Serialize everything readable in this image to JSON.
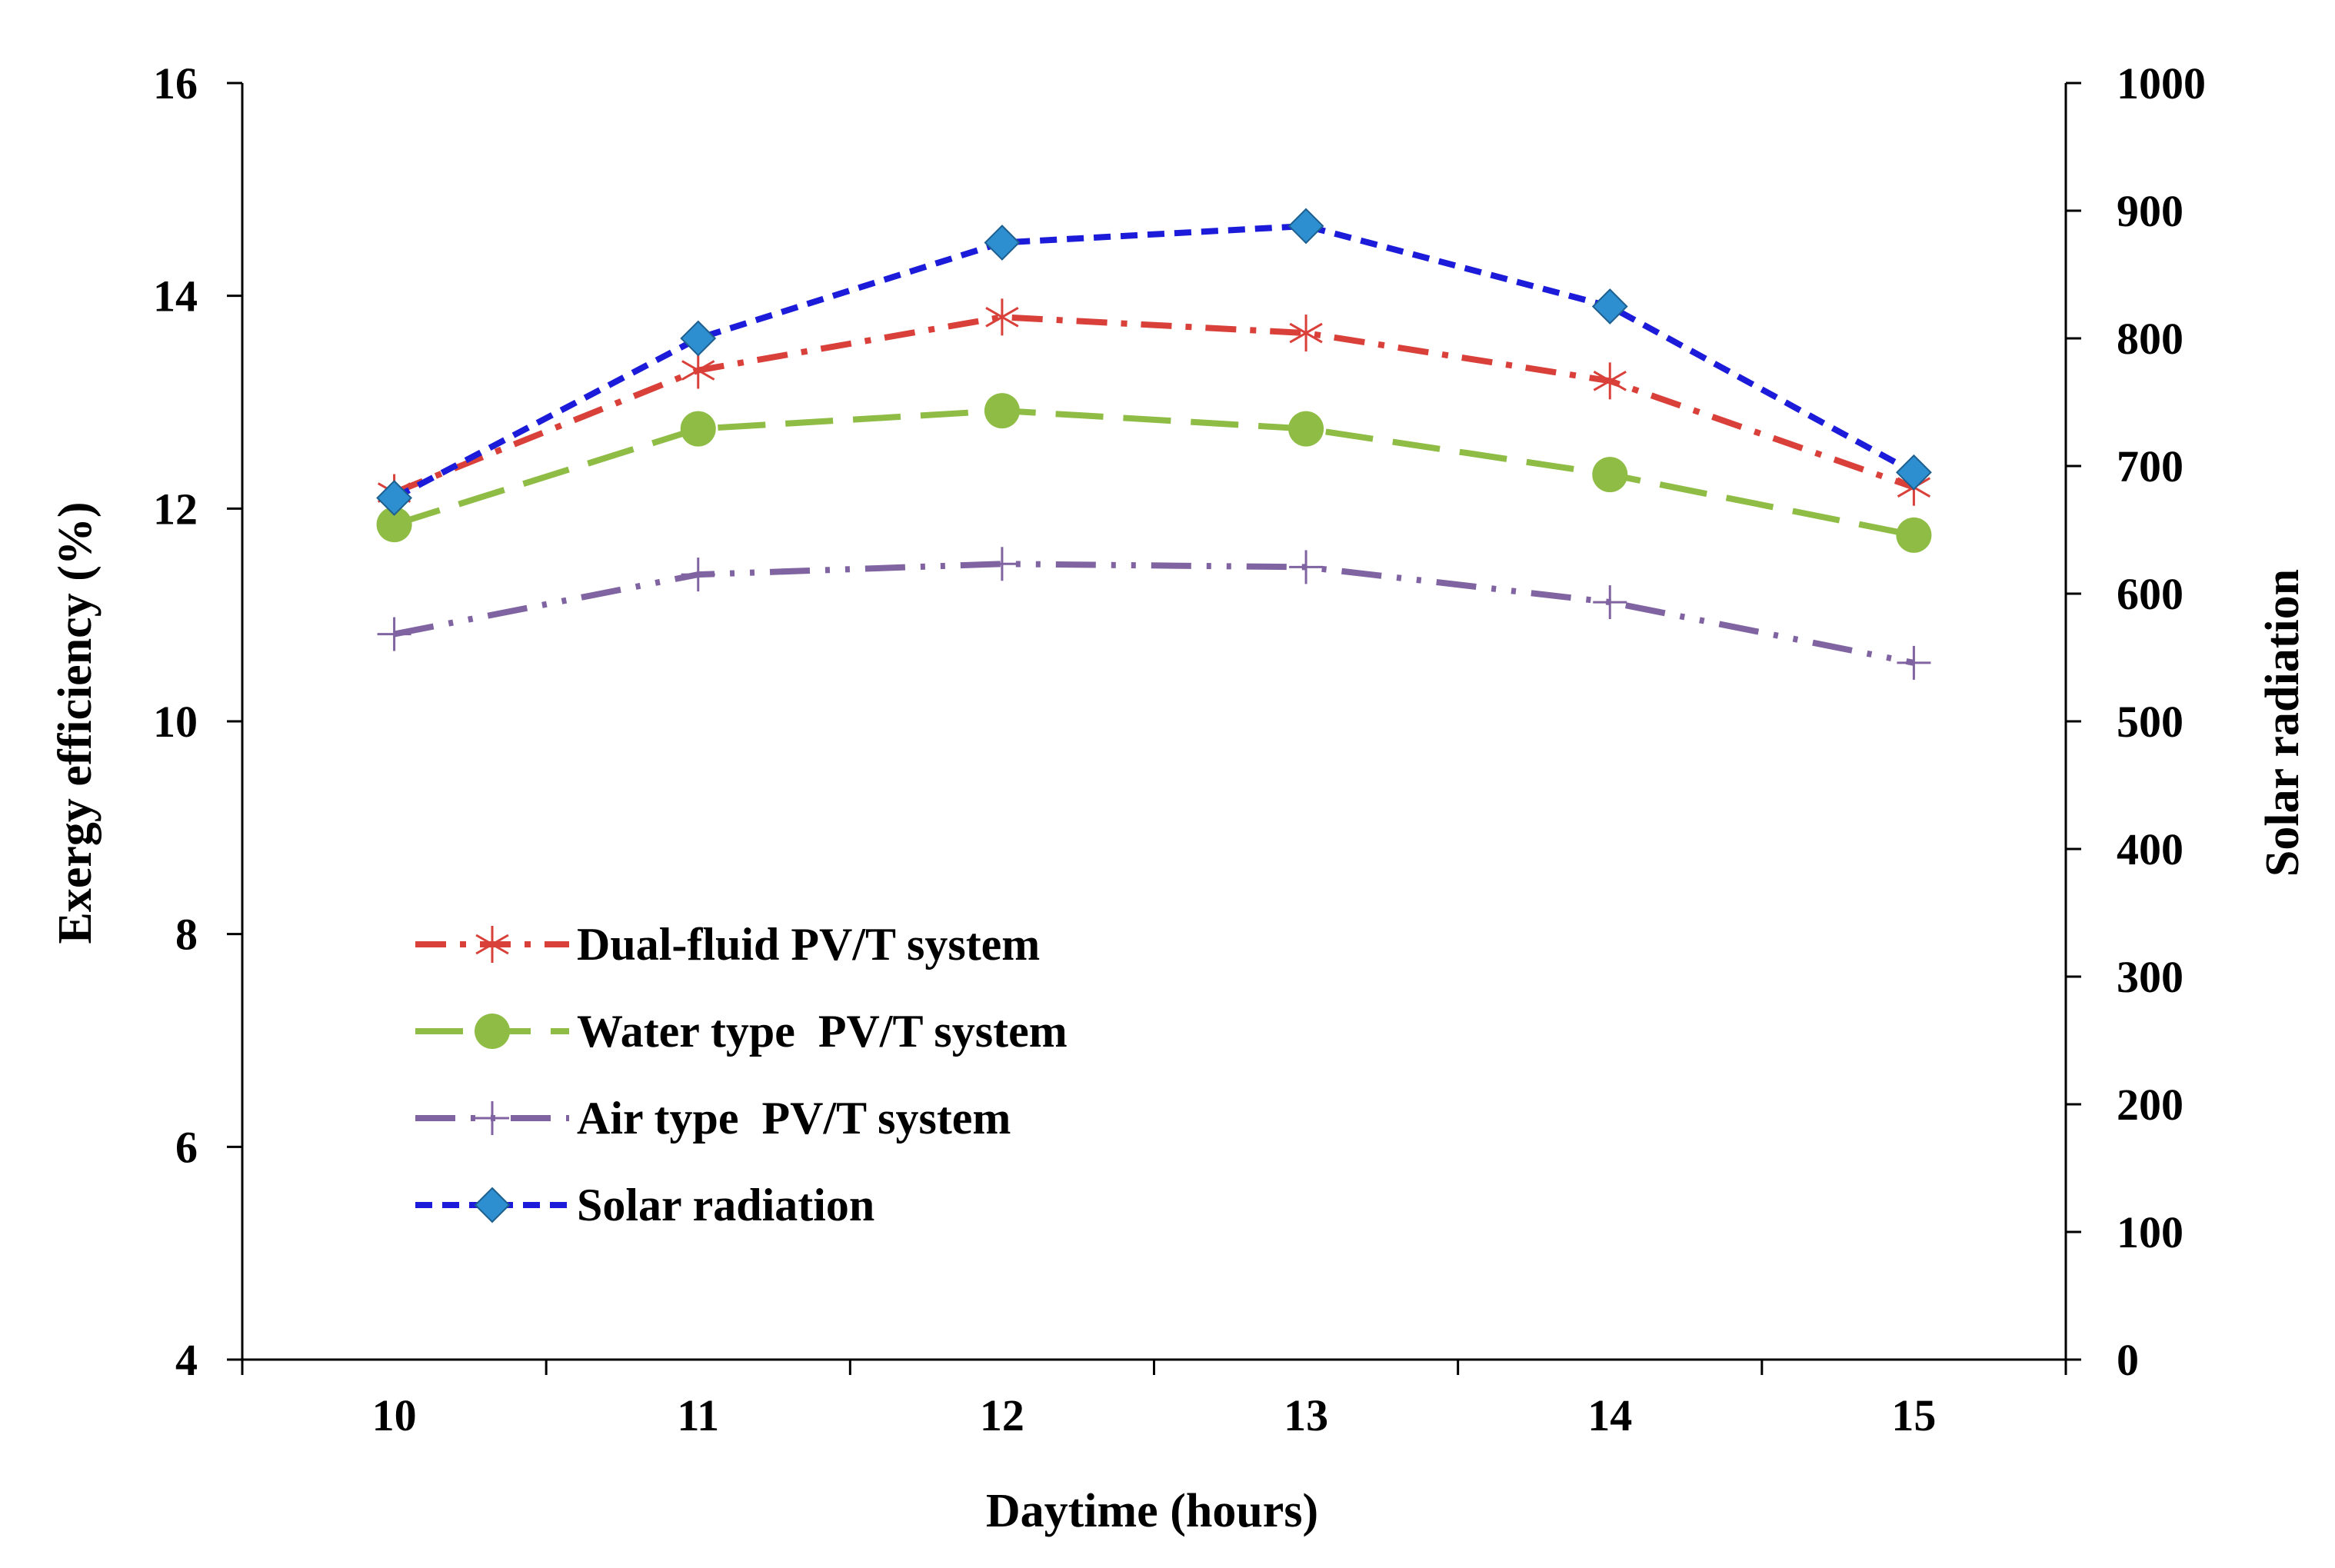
{
  "chart_data": {
    "type": "line",
    "title": "",
    "xlabel": "Daytime (hours)",
    "ylabel": "Exergy  efficiency (%)",
    "y2label": "Solar radiation",
    "categories": [
      10,
      11,
      12,
      13,
      14,
      15
    ],
    "x_tick_labels": [
      "10",
      "11",
      "12",
      "13",
      "14",
      "15"
    ],
    "xlim": [
      9.5,
      15.5
    ],
    "ylim": [
      4,
      16
    ],
    "y_ticks": [
      4,
      6,
      8,
      10,
      12,
      14,
      16
    ],
    "y_tick_labels": [
      "4",
      "6",
      "8",
      "10",
      "12",
      "14",
      "16"
    ],
    "y2lim": [
      0,
      1000
    ],
    "y2_ticks": [
      0,
      100,
      200,
      300,
      400,
      500,
      600,
      700,
      800,
      900,
      1000
    ],
    "y2_tick_labels": [
      "0",
      "100",
      "200",
      "300",
      "400",
      "500",
      "600",
      "700",
      "800",
      "900",
      "1000"
    ],
    "grid": false,
    "legend_position": "bottom-left",
    "series": [
      {
        "key": "dual",
        "name": "Dual-fluid PV/T system",
        "axis": "left",
        "values": [
          12.15,
          13.3,
          13.8,
          13.65,
          13.2,
          12.2
        ],
        "color": "#d9403a",
        "line_style": "dash-dot",
        "marker": "asterisk"
      },
      {
        "key": "water",
        "name": "Water type  PV/T system",
        "axis": "left",
        "values": [
          11.85,
          12.75,
          12.92,
          12.75,
          12.32,
          11.75
        ],
        "color": "#8fbc45",
        "line_style": "long-dash",
        "marker": "circle"
      },
      {
        "key": "air",
        "name": "Air type  PV/T system",
        "axis": "left",
        "values": [
          10.82,
          11.38,
          11.48,
          11.45,
          11.12,
          10.55
        ],
        "color": "#8064a2",
        "line_style": "long-dash-dot-dot",
        "marker": "plus"
      },
      {
        "key": "solar",
        "name": "Solar radiation",
        "axis": "right",
        "values": [
          675,
          800,
          875,
          888,
          825,
          695
        ],
        "color": "#1b1bd9",
        "marker_color": "#2e8fd0",
        "line_style": "short-dash",
        "marker": "diamond"
      }
    ]
  }
}
